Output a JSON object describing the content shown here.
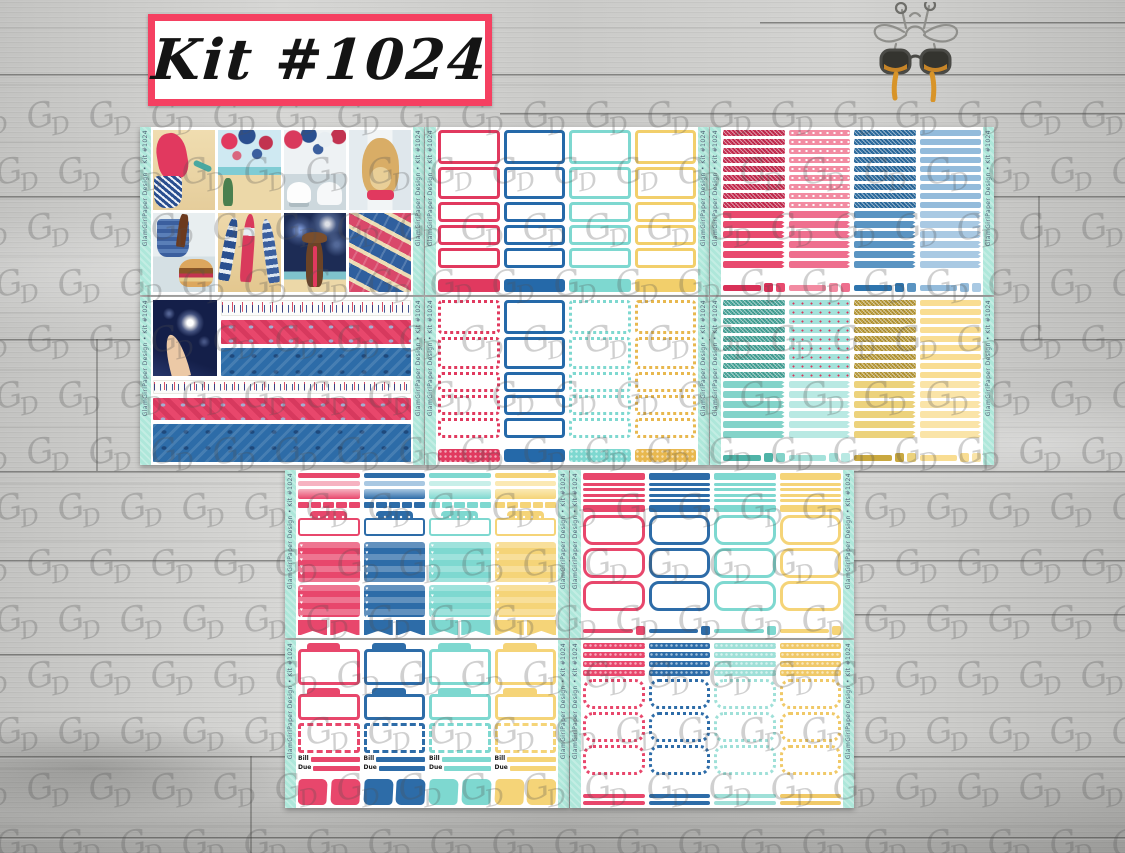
{
  "title": {
    "kit_label": "Kit #1024"
  },
  "brand": {
    "edge_text": "GlamGirlPaper Design",
    "watermark_g": "G",
    "watermark_d": "D",
    "logo": "giraffe-with-glasses"
  },
  "palette": {
    "red": "#e1395f",
    "blue": "#2569a9",
    "teal": "#7ed8d0",
    "yellow": "#f5d478",
    "pink": "#f290a6",
    "lightblue": "#93bbdb",
    "gold": "#c9a83f",
    "aqua": "#ace6e0",
    "mint": "#aee7da",
    "title_border": "#f54061",
    "navy": "#1d2c55",
    "sand": "#ecd9ac",
    "sky": "#c7e6ef",
    "tan": "#d9ad66",
    "wood": "#cccccb"
  },
  "sheets": [
    {
      "name": "photo-collage-sheet",
      "type": "collage",
      "tiles": [
        "swimsuit-beach",
        "beach-lanterns",
        "party-lanterns",
        "dog-porch",
        "picnic-basket",
        "firework-rockets",
        "girl-watching-fireworks",
        "firecracker-stack"
      ]
    },
    {
      "name": "half-box-sheet",
      "type": "halfbox",
      "columns": [
        {
          "color": "#e1395f",
          "style": "solid"
        },
        {
          "color": "#2569a9",
          "style": "solid"
        },
        {
          "color": "#7ed8d0",
          "style": "solid"
        },
        {
          "color": "#f2cf6b",
          "style": "solid"
        }
      ]
    },
    {
      "name": "header-strips-sheet-red-blue",
      "type": "strips",
      "columns": [
        {
          "top": "#d83057",
          "texture": "glitter",
          "bottom": "#e84a6e"
        },
        {
          "top": "#f28ba2",
          "texture": "stars",
          "bottom": "#ee6f8e"
        },
        {
          "top": "#2e74ad",
          "texture": "glitter",
          "bottom": "#5a94c2"
        },
        {
          "top": "#93bbdb",
          "texture": "plain",
          "bottom": "#a9c9e3"
        }
      ]
    },
    {
      "name": "flag-washi-sheet",
      "type": "washi",
      "image": "sparkler-hand-night"
    },
    {
      "name": "patterned-half-box-sheet",
      "type": "halfbox",
      "columns": [
        {
          "color": "#e1395f",
          "style": "speckle"
        },
        {
          "color": "#2569a9",
          "style": "solid"
        },
        {
          "color": "#7ed8d0",
          "style": "speckle"
        },
        {
          "color": "#e8b84f",
          "style": "speckle"
        }
      ]
    },
    {
      "name": "header-strips-sheet-teal-gold",
      "type": "strips",
      "columns": [
        {
          "top": "#4fb3a7",
          "texture": "glitter",
          "bottom": "#83d3c9"
        },
        {
          "top": "#a5e2db",
          "texture": "confetti",
          "bottom": "#b9e9e3"
        },
        {
          "top": "#c9a83f",
          "texture": "glitter",
          "bottom": "#ecd27c"
        },
        {
          "top": "#f9dd92",
          "texture": "plain",
          "bottom": "#fae4a8"
        }
      ]
    },
    {
      "name": "weekly-functional-sheet",
      "type": "weekly",
      "columns": [
        {
          "color": "#e8476c",
          "light": "#f6b3c1"
        },
        {
          "color": "#2d6ca8",
          "light": "#a9c8e2"
        },
        {
          "color": "#7ed8d0",
          "light": "#c8efe9"
        },
        {
          "color": "#f5d478",
          "light": "#fbe9b4"
        }
      ]
    },
    {
      "name": "sidebar-boxes-sheet",
      "type": "sidebar",
      "columns": [
        {
          "color": "#e8476c"
        },
        {
          "color": "#2d6ca8"
        },
        {
          "color": "#7ed8d0"
        },
        {
          "color": "#f5d478"
        }
      ]
    },
    {
      "name": "tabs-and-swatches-sheet",
      "type": "tabs",
      "labels": [
        "Bill",
        "Due"
      ],
      "columns": [
        {
          "color": "#e8476c"
        },
        {
          "color": "#2d6ca8"
        },
        {
          "color": "#7ed8d0"
        },
        {
          "color": "#f5d478"
        }
      ]
    },
    {
      "name": "patterned-sidebar-sheet",
      "type": "sidebar2",
      "columns": [
        {
          "color": "#e8476c"
        },
        {
          "color": "#2d6ca8"
        },
        {
          "color": "#9fe0d8"
        },
        {
          "color": "#f0c968"
        }
      ]
    }
  ]
}
